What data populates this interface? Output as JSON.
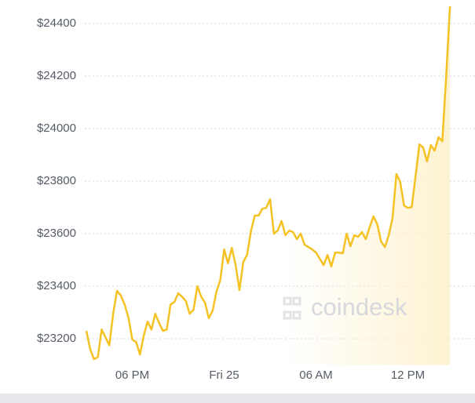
{
  "chart_data": {
    "type": "line",
    "watermark": "coindesk",
    "categories": [
      null,
      null,
      null,
      null,
      null,
      null,
      null,
      null,
      null,
      null,
      null,
      null,
      "06 PM",
      null,
      null,
      null,
      null,
      null,
      null,
      null,
      null,
      null,
      null,
      null,
      null,
      null,
      null,
      null,
      null,
      null,
      null,
      null,
      null,
      null,
      null,
      null,
      "Fri 25",
      null,
      null,
      null,
      null,
      null,
      null,
      null,
      null,
      null,
      null,
      null,
      null,
      null,
      null,
      null,
      null,
      null,
      null,
      null,
      null,
      null,
      null,
      null,
      "06 AM",
      null,
      null,
      null,
      null,
      null,
      null,
      null,
      null,
      null,
      null,
      null,
      null,
      null,
      null,
      null,
      null,
      null,
      null,
      null,
      null,
      null,
      null,
      null,
      "12 PM",
      null,
      null,
      null,
      null,
      null,
      null,
      null,
      null,
      null,
      null,
      null
    ],
    "values": [
      23230,
      23160,
      23122,
      23130,
      23235,
      23205,
      23175,
      23295,
      23382,
      23365,
      23330,
      23280,
      23197,
      23188,
      23140,
      23212,
      23265,
      23235,
      23295,
      23260,
      23230,
      23235,
      23330,
      23340,
      23373,
      23360,
      23343,
      23295,
      23310,
      23400,
      23360,
      23337,
      23278,
      23307,
      23380,
      23424,
      23540,
      23487,
      23546,
      23480,
      23385,
      23492,
      23520,
      23609,
      23669,
      23669,
      23695,
      23698,
      23731,
      23600,
      23612,
      23648,
      23594,
      23612,
      23606,
      23579,
      23600,
      23558,
      23549,
      23540,
      23528,
      23504,
      23480,
      23519,
      23475,
      23528,
      23528,
      23525,
      23600,
      23552,
      23594,
      23588,
      23606,
      23579,
      23624,
      23666,
      23636,
      23570,
      23549,
      23594,
      23660,
      23827,
      23797,
      23707,
      23698,
      23701,
      23818,
      23940,
      23928,
      23875,
      23937,
      23916,
      23967,
      23952,
      24197,
      24466
    ],
    "color": "#f4c223",
    "ylim": [
      23100,
      24480
    ],
    "yticks": [
      {
        "value": 23200,
        "label": "$23200"
      },
      {
        "value": 23400,
        "label": "$23400"
      },
      {
        "value": 23600,
        "label": "$23600"
      },
      {
        "value": 23800,
        "label": "$23800"
      },
      {
        "value": 24000,
        "label": "$24000"
      },
      {
        "value": 24200,
        "label": "$24200"
      },
      {
        "value": 24400,
        "label": "$24400"
      }
    ],
    "grid": true
  }
}
